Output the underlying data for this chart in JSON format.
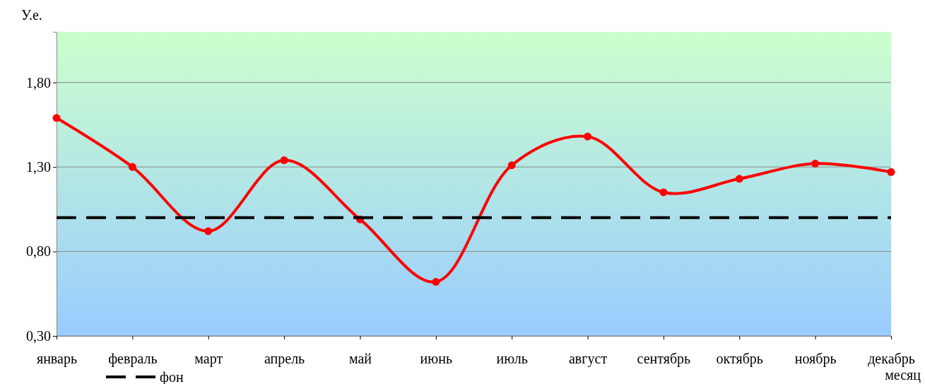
{
  "chart_data": {
    "type": "line",
    "xlabel": "месяц",
    "ylabel": "У.е.",
    "categories": [
      "январь",
      "февраль",
      "март",
      "апрель",
      "май",
      "июнь",
      "июль",
      "август",
      "сентябрь",
      "октябрь",
      "ноябрь",
      "декабрь"
    ],
    "series": [
      {
        "color": "#ff0000",
        "marker": "circle",
        "line_style": "solid",
        "values": [
          1.59,
          1.3,
          0.92,
          1.34,
          0.99,
          0.62,
          1.31,
          1.48,
          1.15,
          1.23,
          1.32,
          1.27
        ]
      },
      {
        "name": "фон",
        "color": "#000000",
        "marker": "none",
        "line_style": "dashed",
        "values": [
          1.0,
          1.0,
          1.0,
          1.0,
          1.0,
          1.0,
          1.0,
          1.0,
          1.0,
          1.0,
          1.0,
          1.0
        ]
      }
    ],
    "ylim": [
      0.3,
      2.1
    ],
    "yticks": [
      {
        "value": 0.3,
        "label": "0,30"
      },
      {
        "value": 0.8,
        "label": "0,80"
      },
      {
        "value": 1.3,
        "label": "1,30"
      },
      {
        "value": 1.8,
        "label": "1,80"
      }
    ],
    "grid": "y",
    "legend": "bottom"
  }
}
